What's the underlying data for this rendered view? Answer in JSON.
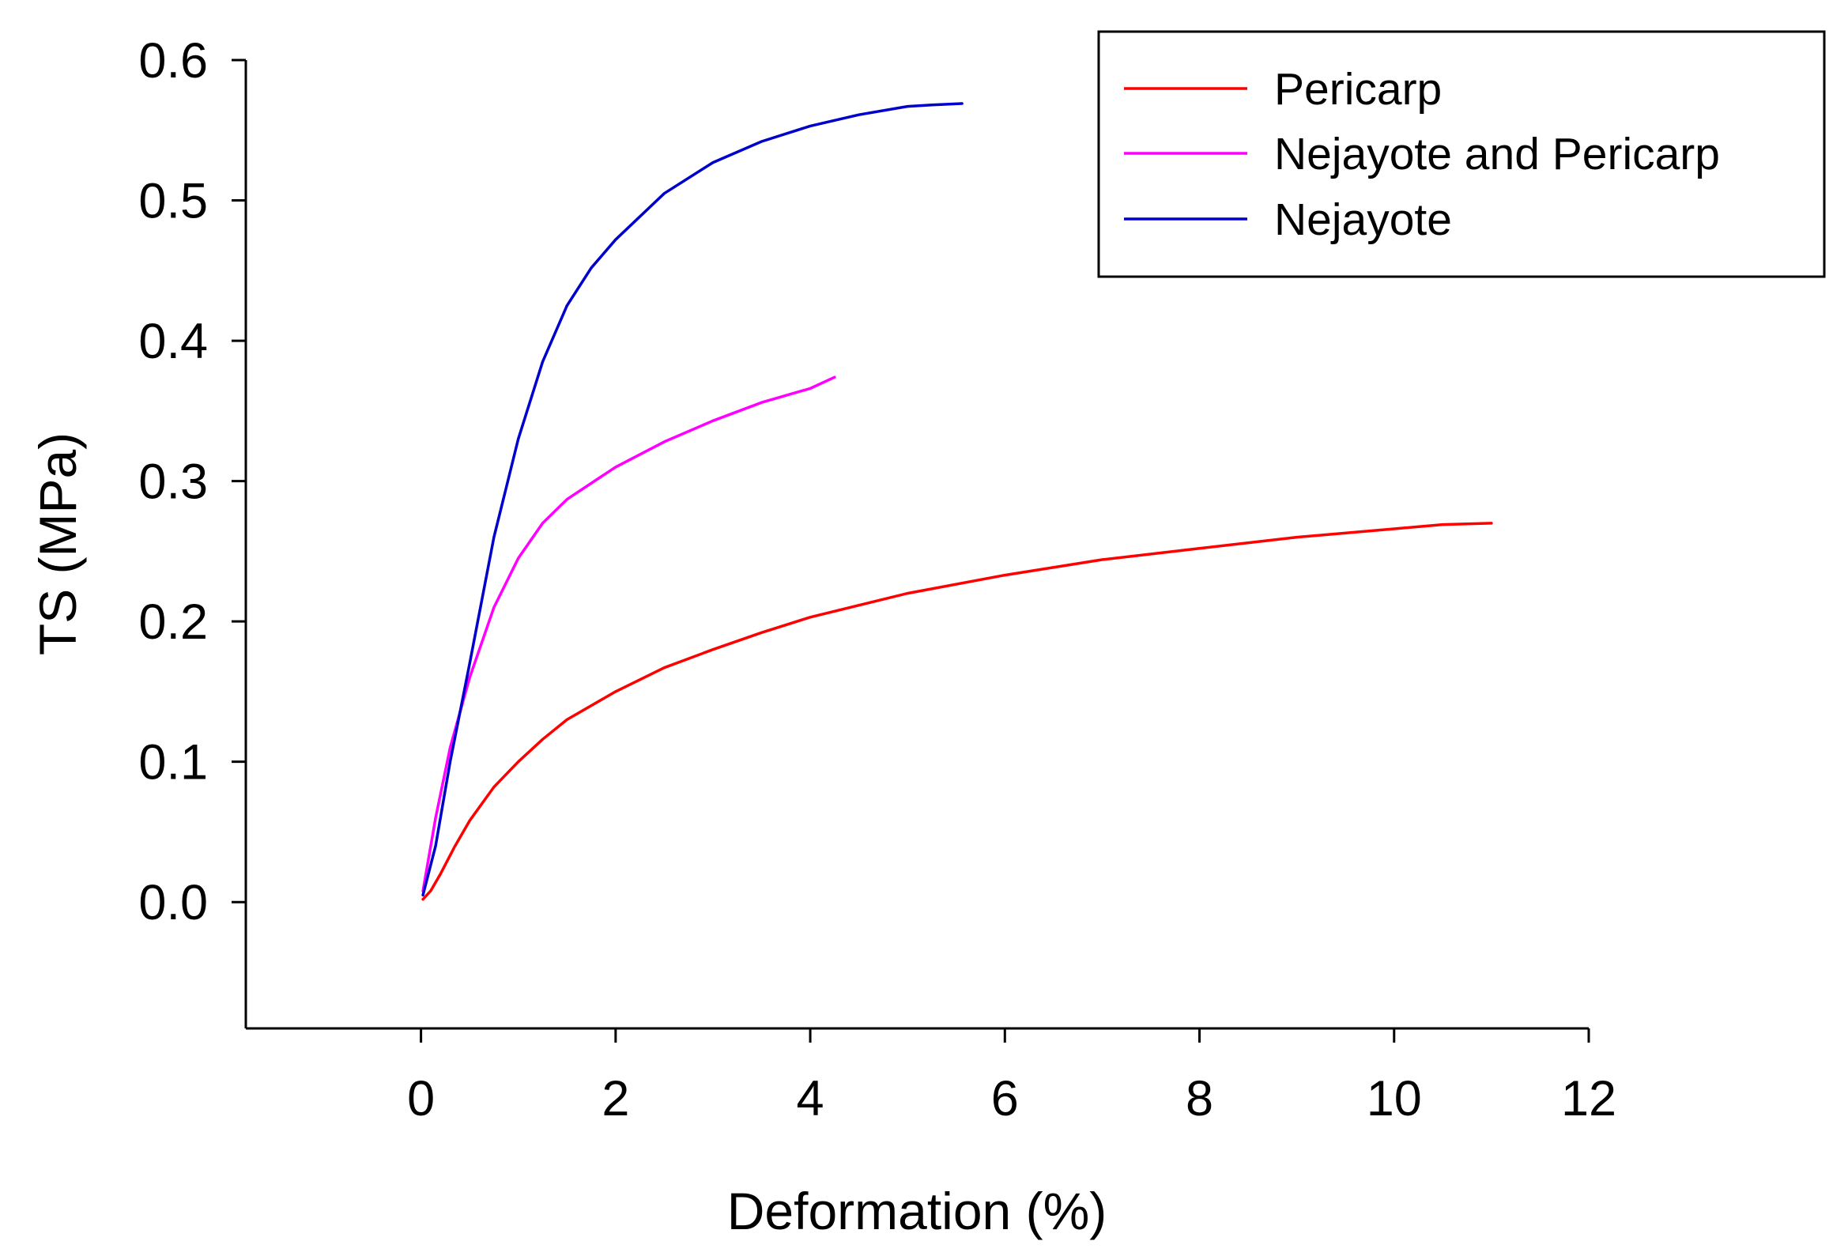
{
  "chart_data": {
    "type": "line",
    "title": "",
    "xlabel": "Deformation (%)",
    "ylabel": "TS (MPa)",
    "xlim": [
      -1.8,
      12
    ],
    "ylim": [
      -0.09,
      0.6
    ],
    "xticks": [
      0,
      2,
      4,
      6,
      8,
      10,
      12
    ],
    "xtick_labels": [
      "0",
      "2",
      "4",
      "6",
      "8",
      "10",
      "12"
    ],
    "yticks": [
      0.0,
      0.1,
      0.2,
      0.3,
      0.4,
      0.5,
      0.6
    ],
    "ytick_labels": [
      "0.0",
      "0.1",
      "0.2",
      "0.3",
      "0.4",
      "0.5",
      "0.6"
    ],
    "grid": false,
    "legend_position": "top-right",
    "series": [
      {
        "name": "Pericarp",
        "color": "#ff0000",
        "x": [
          0.02,
          0.1,
          0.2,
          0.35,
          0.5,
          0.75,
          1.0,
          1.25,
          1.5,
          2.0,
          2.5,
          3.0,
          3.5,
          4.0,
          5.0,
          6.0,
          7.0,
          8.0,
          9.0,
          10.0,
          10.5,
          11.0
        ],
        "y": [
          0.002,
          0.008,
          0.02,
          0.04,
          0.058,
          0.082,
          0.1,
          0.116,
          0.13,
          0.15,
          0.167,
          0.18,
          0.192,
          0.203,
          0.22,
          0.233,
          0.244,
          0.252,
          0.26,
          0.266,
          0.269,
          0.27
        ]
      },
      {
        "name": "Nejayote and Pericarp",
        "color": "#ff00ff",
        "x": [
          0.02,
          0.15,
          0.3,
          0.5,
          0.75,
          1.0,
          1.25,
          1.5,
          2.0,
          2.5,
          3.0,
          3.5,
          4.0,
          4.25
        ],
        "y": [
          0.008,
          0.06,
          0.11,
          0.16,
          0.21,
          0.245,
          0.27,
          0.287,
          0.31,
          0.328,
          0.343,
          0.356,
          0.366,
          0.374
        ]
      },
      {
        "name": "Nejayote",
        "color": "#0000cc",
        "x": [
          0.02,
          0.15,
          0.3,
          0.5,
          0.75,
          1.0,
          1.25,
          1.5,
          1.75,
          2.0,
          2.5,
          3.0,
          3.5,
          4.0,
          4.5,
          5.0,
          5.25,
          5.56
        ],
        "y": [
          0.005,
          0.04,
          0.1,
          0.17,
          0.26,
          0.33,
          0.385,
          0.425,
          0.452,
          0.472,
          0.505,
          0.527,
          0.542,
          0.553,
          0.561,
          0.567,
          0.568,
          0.569
        ]
      }
    ]
  }
}
